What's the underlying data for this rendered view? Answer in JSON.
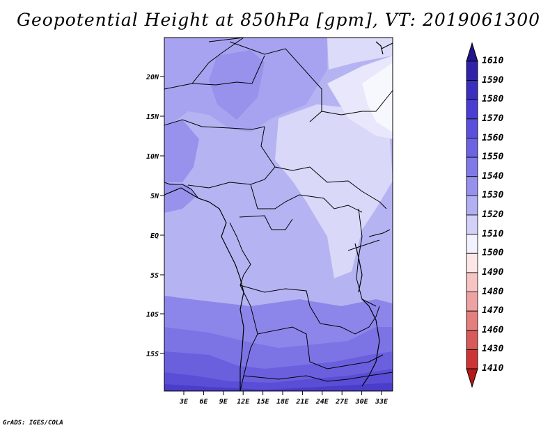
{
  "title": "Geopotential Height at 850hPa [gpm], VT: 2019061300",
  "credit": "GrADS: IGES/COLA",
  "map": {
    "lat_ticks": [
      "20N",
      "15N",
      "10N",
      "5N",
      "EQ",
      "5S",
      "10S",
      "15S"
    ],
    "lon_ticks": [
      "3E",
      "6E",
      "9E",
      "12E",
      "15E",
      "18E",
      "21E",
      "24E",
      "27E",
      "30E",
      "33E"
    ]
  },
  "colorbar": {
    "levels": [
      "1610",
      "1590",
      "1580",
      "1570",
      "1560",
      "1550",
      "1540",
      "1530",
      "1520",
      "1510",
      "1500",
      "1490",
      "1480",
      "1470",
      "1460",
      "1430",
      "1410"
    ],
    "colors": [
      "#22148c",
      "#2f22a8",
      "#3b2fbe",
      "#4a3ed2",
      "#5a50dc",
      "#6c63e2",
      "#8079e8",
      "#9791ee",
      "#b2aff3",
      "#d3d1f8",
      "#f2f1fd",
      "#fde6e6",
      "#f7c4c4",
      "#eea3a3",
      "#e37f7f",
      "#d85a5a",
      "#cb3535",
      "#b81818"
    ]
  }
}
